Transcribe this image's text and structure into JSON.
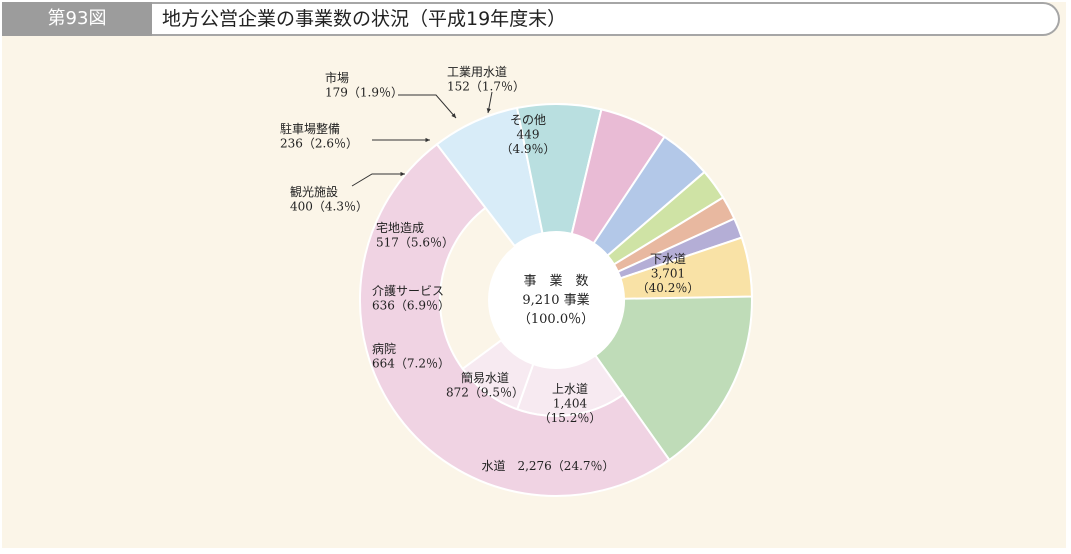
{
  "header": {
    "figure_number": "第93図",
    "title": "地方公営企業の事業数の状況（平成19年度末）"
  },
  "chart_data": {
    "type": "pie",
    "title": "地方公営企業の事業数の状況（平成19年度末）",
    "center_label": {
      "line1": "事　業　数",
      "line2": "9,210 事業",
      "line3": "（100.0％）"
    },
    "total": 9210,
    "start_angle_deg": 0,
    "slices": [
      {
        "name": "下水道",
        "value": 3701,
        "value_label": "3,701",
        "percent": "（40.2％）",
        "color": "#bfdcb8"
      },
      {
        "name": "上水道",
        "value": 1404,
        "value_label": "1,404",
        "percent": "（15.2％）",
        "color": "#f7eaf1"
      },
      {
        "name": "簡易水道",
        "value": 872,
        "value_label": "872（9.5％）",
        "percent": "",
        "color": "#f7eaf1"
      },
      {
        "name": "水道",
        "value": 2276,
        "value_label": "2,276（24.7％）",
        "percent": "",
        "color": "#f0d3e3"
      },
      {
        "name": "病院",
        "value": 664,
        "value_label": "664（7.2％）",
        "percent": "",
        "color": "#d8ecf8"
      },
      {
        "name": "介護サービス",
        "value": 636,
        "value_label": "636（6.9％）",
        "percent": "",
        "color": "#b9dfe0"
      },
      {
        "name": "宅地造成",
        "value": 517,
        "value_label": "517（5.6％）",
        "percent": "",
        "color": "#e9bbd5"
      },
      {
        "name": "観光施設",
        "value": 400,
        "value_label": "400（4.3％）",
        "percent": "",
        "color": "#b3c8e8"
      },
      {
        "name": "駐車場整備",
        "value": 236,
        "value_label": "236（2.6％）",
        "percent": "",
        "color": "#cfe3a5"
      },
      {
        "name": "市場",
        "value": 179,
        "value_label": "179（1.9％）",
        "percent": "",
        "color": "#e8b8a0"
      },
      {
        "name": "工業用水道",
        "value": 152,
        "value_label": "152（1.7％）",
        "percent": "",
        "color": "#b4aed6"
      },
      {
        "name": "その他",
        "value": 449,
        "value_label": "449",
        "percent": "（4.9％）",
        "color": "#f9e2a6"
      }
    ],
    "nested": {
      "outer_group_name": "水道",
      "inner_slices": [
        "上水道",
        "簡易水道"
      ]
    }
  }
}
